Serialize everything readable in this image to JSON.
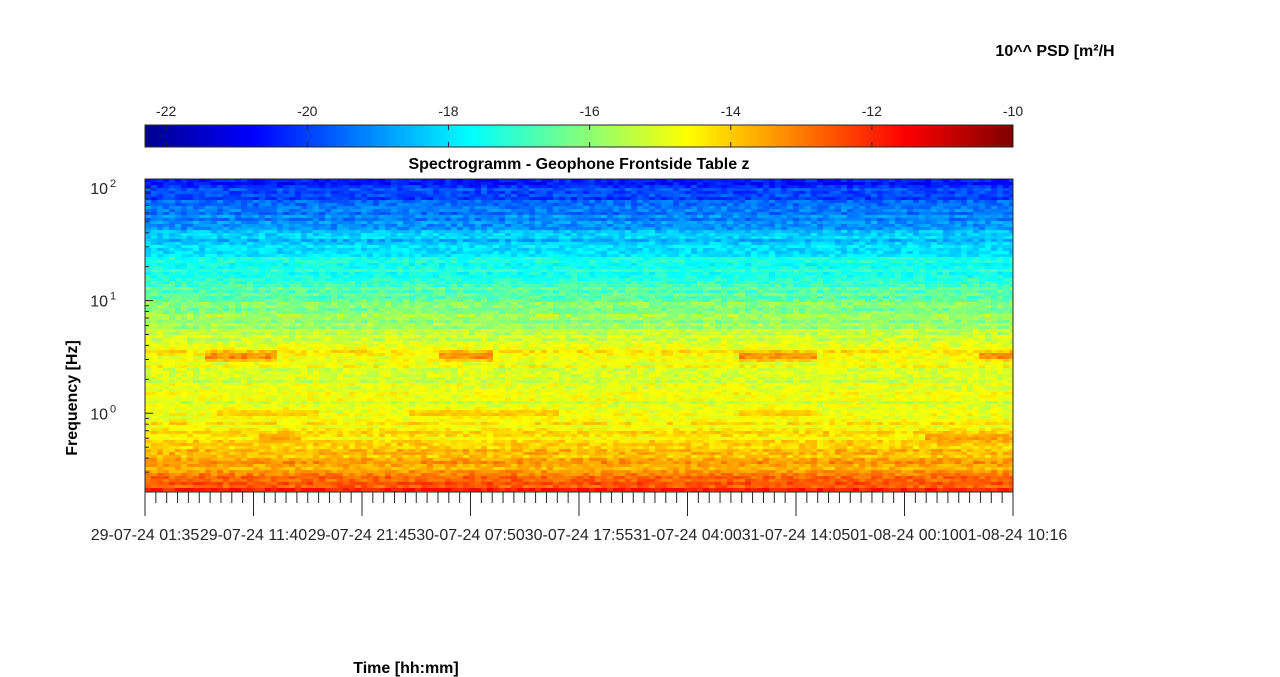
{
  "chart_data": {
    "type": "heatmap",
    "title": "Spectrogramm - Geophone Frontside Table z",
    "xlabel": "Time [hh:mm]",
    "ylabel": "Frequency [Hz]",
    "y_scale": "log",
    "ylim": [
      0.2,
      120
    ],
    "y_ticks": [
      {
        "value": 1,
        "base": "10",
        "exp": "0"
      },
      {
        "value": 10,
        "base": "10",
        "exp": "1"
      },
      {
        "value": 100,
        "base": "10",
        "exp": "2"
      }
    ],
    "x_ticks": [
      "29-07-24  01:35",
      "29-07-24  11:40",
      "29-07-24  21:45",
      "30-07-24  07:50",
      "30-07-24  17:55",
      "31-07-24  04:00",
      "31-07-24  14:05",
      "01-08-24  00:10",
      "01-08-24  10:16"
    ],
    "colorbar": {
      "label": "10^^ PSD [m²/H",
      "colormap": "jet",
      "range": [
        -22.3,
        -10
      ],
      "ticks": [
        -22,
        -20,
        -18,
        -16,
        -14,
        -12,
        -10
      ]
    },
    "band_profile_log10_psd": [
      {
        "freq_hz": 0.2,
        "value": -12.0
      },
      {
        "freq_hz": 0.3,
        "value": -13.4
      },
      {
        "freq_hz": 0.6,
        "value": -14.3
      },
      {
        "freq_hz": 1.0,
        "value": -14.8
      },
      {
        "freq_hz": 2.0,
        "value": -15.0
      },
      {
        "freq_hz": 3.2,
        "value": -14.4
      },
      {
        "freq_hz": 6.0,
        "value": -15.6
      },
      {
        "freq_hz": 10.0,
        "value": -16.4
      },
      {
        "freq_hz": 25.0,
        "value": -17.8
      },
      {
        "freq_hz": 50.0,
        "value": -19.0
      },
      {
        "freq_hz": 120.0,
        "value": -20.6
      }
    ],
    "features": [
      {
        "freq_hz": 3.2,
        "value": -12.5,
        "periods": [
          [
            "29-07-24  07:00",
            "29-07-24  14:00"
          ],
          [
            "30-07-24  05:00",
            "30-07-24  10:00"
          ],
          [
            "31-07-24  09:00",
            "31-07-24  16:00"
          ],
          [
            "01-08-24  07:00",
            "01-08-24  10:16"
          ]
        ]
      },
      {
        "freq_hz": 1.0,
        "value": -13.6,
        "periods": [
          [
            "29-07-24  08:00",
            "29-07-24  18:00"
          ],
          [
            "30-07-24  02:00",
            "30-07-24  16:00"
          ],
          [
            "31-07-24  09:00",
            "31-07-24  16:00"
          ]
        ]
      },
      {
        "freq_hz": 0.6,
        "value": -13.0,
        "periods": [
          [
            "29-07-24  12:00",
            "29-07-24  16:00"
          ],
          [
            "01-08-24  02:00",
            "01-08-24  10:16"
          ]
        ]
      }
    ]
  }
}
